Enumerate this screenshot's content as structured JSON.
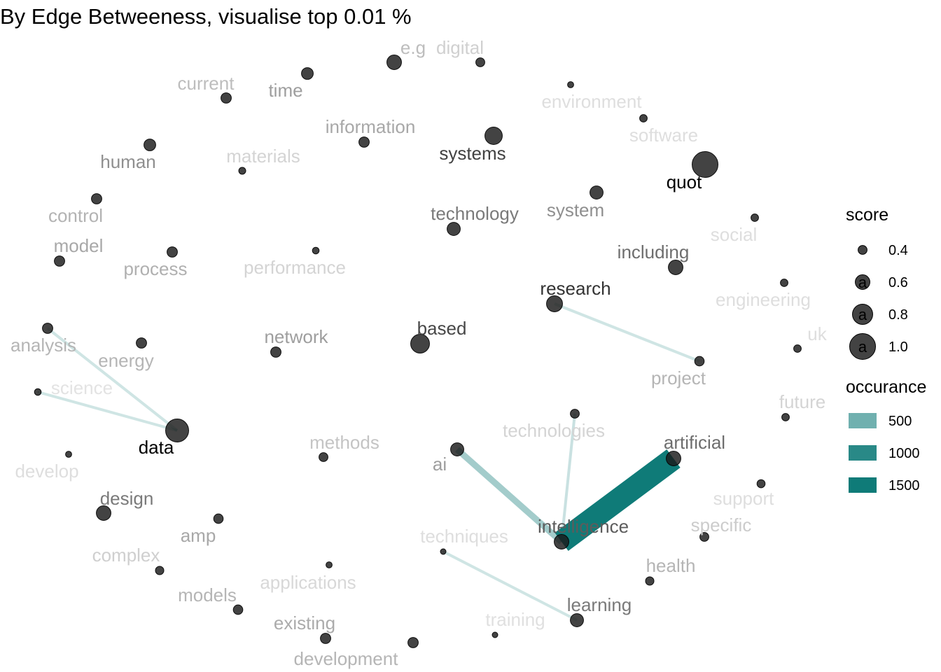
{
  "title": "By Edge Betweeness, visualise top 0.01 %",
  "colors": {
    "node_fill": "#1a1a1a",
    "edge": "#0f7b78",
    "background": "#ffffff"
  },
  "nodes": [
    {
      "id": "e.g",
      "score": 0.6
    },
    {
      "id": "digital",
      "score": 0.4
    },
    {
      "id": "current",
      "score": 0.45
    },
    {
      "id": "time",
      "score": 0.5
    },
    {
      "id": "environment",
      "score": 0.3
    },
    {
      "id": "software",
      "score": 0.35
    },
    {
      "id": "information",
      "score": 0.45
    },
    {
      "id": "systems",
      "score": 0.7
    },
    {
      "id": "human",
      "score": 0.5
    },
    {
      "id": "materials",
      "score": 0.33
    },
    {
      "id": "quot",
      "score": 1.0
    },
    {
      "id": "control",
      "score": 0.45
    },
    {
      "id": "system",
      "score": 0.55
    },
    {
      "id": "technology",
      "score": 0.55
    },
    {
      "id": "social",
      "score": 0.35
    },
    {
      "id": "model",
      "score": 0.45
    },
    {
      "id": "process",
      "score": 0.45
    },
    {
      "id": "performance",
      "score": 0.32
    },
    {
      "id": "including",
      "score": 0.6
    },
    {
      "id": "research",
      "score": 0.65
    },
    {
      "id": "engineering",
      "score": 0.35
    },
    {
      "id": "analysis",
      "score": 0.45
    },
    {
      "id": "energy",
      "score": 0.45
    },
    {
      "id": "network",
      "score": 0.45
    },
    {
      "id": "based",
      "score": 0.75
    },
    {
      "id": "uk",
      "score": 0.35
    },
    {
      "id": "project",
      "score": 0.42
    },
    {
      "id": "science",
      "score": 0.32
    },
    {
      "id": "future",
      "score": 0.35
    },
    {
      "id": "technologies",
      "score": 0.4
    },
    {
      "id": "data",
      "score": 0.9
    },
    {
      "id": "methods",
      "score": 0.4
    },
    {
      "id": "artificial",
      "score": 0.6
    },
    {
      "id": "ai",
      "score": 0.55
    },
    {
      "id": "develop",
      "score": 0.3
    },
    {
      "id": "support",
      "score": 0.37
    },
    {
      "id": "design",
      "score": 0.6
    },
    {
      "id": "amp",
      "score": 0.42
    },
    {
      "id": "intelligence",
      "score": 0.6
    },
    {
      "id": "specific",
      "score": 0.4
    },
    {
      "id": "techniques",
      "score": 0.28
    },
    {
      "id": "complex",
      "score": 0.38
    },
    {
      "id": "health",
      "score": 0.38
    },
    {
      "id": "applications",
      "score": 0.3
    },
    {
      "id": "models",
      "score": 0.42
    },
    {
      "id": "learning",
      "score": 0.55
    },
    {
      "id": "existing",
      "score": 0.45
    },
    {
      "id": "training",
      "score": 0.28
    },
    {
      "id": "development",
      "score": 0.45
    }
  ],
  "edges": [
    {
      "from": "data",
      "to": "analysis",
      "occurance": 150
    },
    {
      "from": "data",
      "to": "science",
      "occurance": 150
    },
    {
      "from": "research",
      "to": "project",
      "occurance": 150
    },
    {
      "from": "ai",
      "to": "intelligence",
      "occurance": 500
    },
    {
      "from": "technologies",
      "to": "intelligence",
      "occurance": 200
    },
    {
      "from": "artificial",
      "to": "intelligence",
      "occurance": 1800
    },
    {
      "from": "techniques",
      "to": "learning",
      "occurance": 150
    }
  ],
  "legend": {
    "score": {
      "title": "score",
      "keys": [
        0.4,
        0.6,
        0.8,
        1.0
      ],
      "labels": [
        "0.4",
        "0.6",
        "0.8",
        "1.0"
      ],
      "glyph": "a"
    },
    "occurance": {
      "title": "occurance",
      "keys": [
        500,
        1000,
        1500
      ],
      "labels": [
        "500",
        "1000",
        "1500"
      ]
    }
  }
}
